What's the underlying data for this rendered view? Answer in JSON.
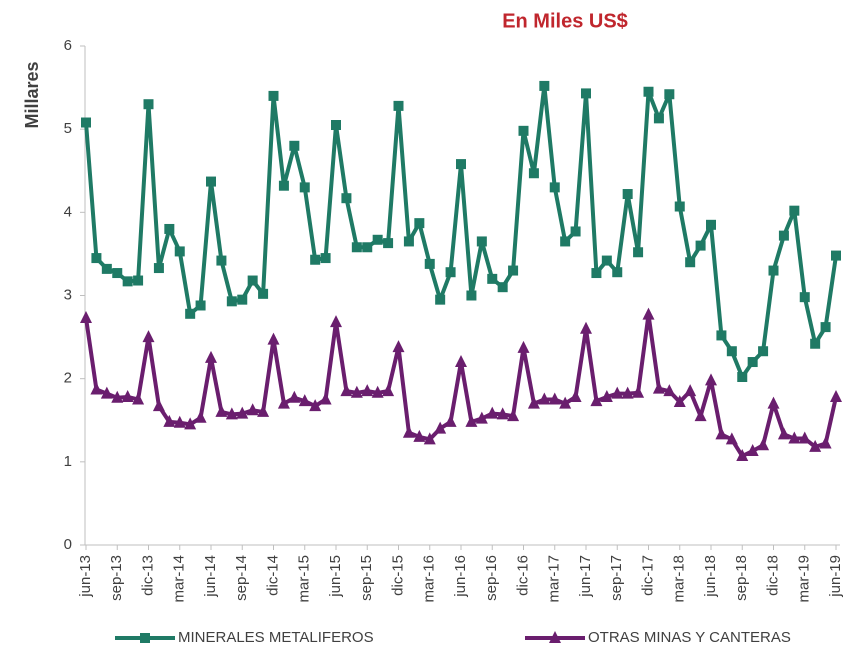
{
  "chart_data": {
    "type": "line",
    "title": "En Miles US$",
    "y_label": "Millares",
    "categories": [
      "jun-13",
      null,
      null,
      "sep-13",
      null,
      null,
      "dic-13",
      null,
      null,
      "mar-14",
      null,
      null,
      "jun-14",
      null,
      null,
      "sep-14",
      null,
      null,
      "dic-14",
      null,
      null,
      "mar-15",
      null,
      null,
      "jun-15",
      null,
      null,
      "sep-15",
      null,
      null,
      "dic-15",
      null,
      null,
      "mar-16",
      null,
      null,
      "jun-16",
      null,
      null,
      "sep-16",
      null,
      null,
      "dic-16",
      null,
      null,
      "mar-17",
      null,
      null,
      "jun-17",
      null,
      null,
      "sep-17",
      null,
      null,
      "dic-17",
      null,
      null,
      "mar-18",
      null,
      null,
      "jun-18",
      null,
      null,
      "sep-18",
      null,
      null,
      "dic-18",
      null,
      null,
      "mar-19",
      null,
      null,
      "jun-19"
    ],
    "series": [
      {
        "name": "MINERALES METALIFEROS",
        "color": "#1f7a65",
        "marker": "square",
        "values": [
          5.08,
          3.45,
          3.32,
          3.27,
          3.17,
          3.18,
          5.3,
          3.33,
          3.8,
          3.53,
          2.78,
          2.88,
          4.37,
          3.42,
          2.93,
          2.95,
          3.18,
          3.02,
          5.4,
          4.32,
          4.8,
          4.3,
          3.43,
          3.45,
          5.05,
          4.17,
          3.58,
          3.58,
          3.67,
          3.63,
          5.28,
          3.65,
          3.87,
          3.38,
          2.95,
          3.28,
          4.58,
          3.0,
          3.65,
          3.2,
          3.1,
          3.3,
          4.98,
          4.47,
          5.52,
          4.3,
          3.65,
          3.77,
          5.43,
          3.27,
          3.42,
          3.28,
          4.22,
          3.52,
          5.45,
          5.13,
          5.42,
          4.07,
          3.4,
          3.6,
          3.85,
          2.52,
          2.33,
          2.02,
          2.2,
          2.33,
          3.3,
          3.72,
          4.02,
          2.98,
          2.42,
          2.62,
          3.48
        ]
      },
      {
        "name": "OTRAS MINAS Y CANTERAS",
        "color": "#6a1e6e",
        "marker": "triangle",
        "values": [
          2.73,
          1.87,
          1.82,
          1.77,
          1.78,
          1.75,
          2.5,
          1.67,
          1.48,
          1.47,
          1.45,
          1.53,
          2.25,
          1.6,
          1.57,
          1.58,
          1.62,
          1.6,
          2.47,
          1.7,
          1.77,
          1.73,
          1.67,
          1.75,
          2.68,
          1.85,
          1.83,
          1.85,
          1.83,
          1.85,
          2.38,
          1.35,
          1.3,
          1.27,
          1.4,
          1.48,
          2.2,
          1.48,
          1.52,
          1.58,
          1.57,
          1.55,
          2.37,
          1.7,
          1.75,
          1.75,
          1.7,
          1.78,
          2.6,
          1.73,
          1.78,
          1.82,
          1.82,
          1.83,
          2.77,
          1.88,
          1.85,
          1.72,
          1.85,
          1.55,
          1.98,
          1.33,
          1.27,
          1.07,
          1.13,
          1.2,
          1.7,
          1.33,
          1.28,
          1.28,
          1.18,
          1.22,
          1.78
        ]
      }
    ],
    "ylim": [
      0,
      6
    ],
    "yticks": [
      0,
      1,
      2,
      3,
      4,
      5,
      6
    ],
    "grid": false,
    "legend": "bottom"
  }
}
